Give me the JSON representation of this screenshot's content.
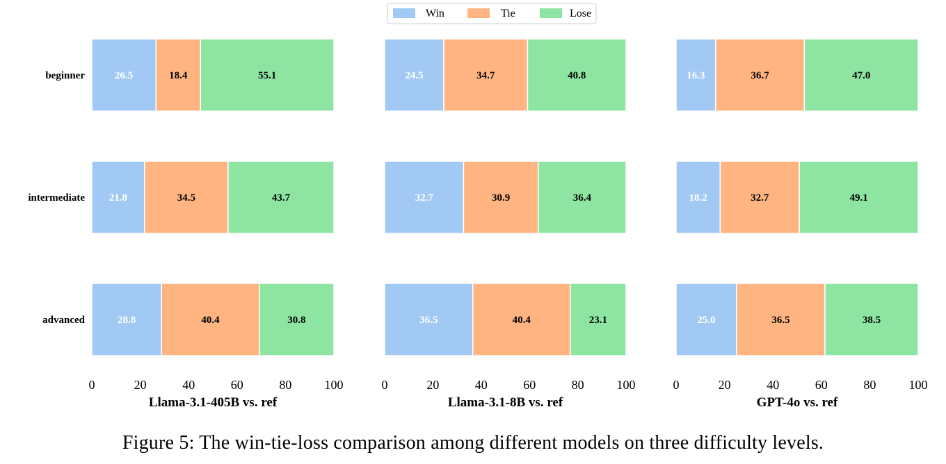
{
  "legend": {
    "placement": "top-center",
    "items": [
      {
        "label": "Win",
        "color": "#a1c9f4"
      },
      {
        "label": "Tie",
        "color": "#ffb482"
      },
      {
        "label": "Lose",
        "color": "#8de5a1"
      }
    ]
  },
  "caption": "Figure 5: The win-tie-loss comparison among different models on three difficulty levels.",
  "chart_data": [
    {
      "type": "bar",
      "orientation": "horizontal",
      "stacked": true,
      "xlabel": "Llama-3.1-405B vs. ref",
      "xlim": [
        0,
        100
      ],
      "xticks": [
        0,
        20,
        40,
        60,
        80,
        100
      ],
      "categories": [
        "beginner",
        "intermediate",
        "advanced"
      ],
      "series": [
        {
          "name": "Win",
          "values": [
            26.5,
            21.8,
            28.8
          ]
        },
        {
          "name": "Tie",
          "values": [
            18.4,
            34.5,
            40.4
          ]
        },
        {
          "name": "Lose",
          "values": [
            55.1,
            43.7,
            30.8
          ]
        }
      ]
    },
    {
      "type": "bar",
      "orientation": "horizontal",
      "stacked": true,
      "xlabel": "Llama-3.1-8B vs. ref",
      "xlim": [
        0,
        100
      ],
      "xticks": [
        0,
        20,
        40,
        60,
        80,
        100
      ],
      "categories": [
        "beginner",
        "intermediate",
        "advanced"
      ],
      "series": [
        {
          "name": "Win",
          "values": [
            24.5,
            32.7,
            36.5
          ]
        },
        {
          "name": "Tie",
          "values": [
            34.7,
            30.9,
            40.4
          ]
        },
        {
          "name": "Lose",
          "values": [
            40.8,
            36.4,
            23.1
          ]
        }
      ]
    },
    {
      "type": "bar",
      "orientation": "horizontal",
      "stacked": true,
      "xlabel": "GPT-4o vs. ref",
      "xlim": [
        0,
        100
      ],
      "xticks": [
        0,
        20,
        40,
        60,
        80,
        100
      ],
      "categories": [
        "beginner",
        "intermediate",
        "advanced"
      ],
      "series": [
        {
          "name": "Win",
          "values": [
            16.3,
            18.2,
            25.0
          ]
        },
        {
          "name": "Tie",
          "values": [
            36.7,
            32.7,
            36.5
          ]
        },
        {
          "name": "Lose",
          "values": [
            47.0,
            49.1,
            38.5
          ]
        }
      ]
    }
  ]
}
